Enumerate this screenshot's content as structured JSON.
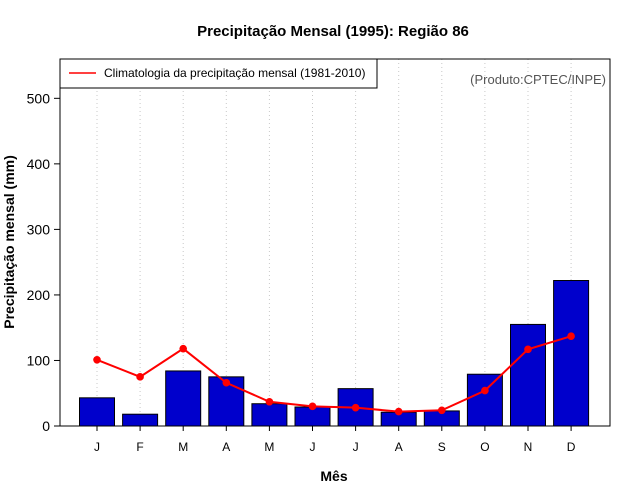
{
  "chart_data": {
    "type": "bar",
    "title": "Precipitação Mensal (1995): Região 86",
    "xlabel": "Mês",
    "ylabel": "Precipitação mensal (mm)",
    "ylim": [
      0,
      560
    ],
    "yticks": [
      0,
      100,
      200,
      300,
      400,
      500
    ],
    "categories": [
      "J",
      "F",
      "M",
      "A",
      "M",
      "J",
      "J",
      "A",
      "S",
      "O",
      "N",
      "D"
    ],
    "series": [
      {
        "name": "Precipitação mensal (1995)",
        "kind": "bar",
        "color": "#0000cc",
        "values": [
          43,
          18,
          84,
          75,
          34,
          29,
          57,
          21,
          23,
          79,
          155,
          222
        ]
      },
      {
        "name": "Climatologia da precipitação mensal (1981-2010)",
        "kind": "line",
        "color": "#ff0000",
        "values": [
          101,
          75,
          118,
          66,
          37,
          30,
          28,
          22,
          24,
          54,
          117,
          137
        ]
      }
    ],
    "legend": {
      "position": "top-left",
      "label": "Climatologia da precipitação mensal (1981-2010)"
    },
    "source_note": "(Produto:CPTEC/INPE)",
    "grid": "vertical-dotted"
  }
}
